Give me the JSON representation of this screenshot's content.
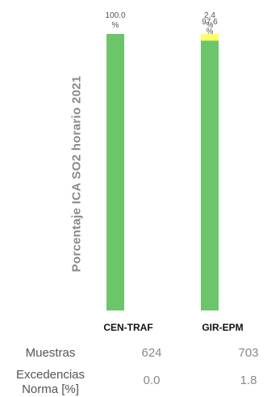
{
  "chart_data": {
    "type": "bar",
    "ylabel": "Porcentaje ICA SO2 horario 2021",
    "ylim": [
      0,
      100
    ],
    "categories": [
      "CEN-TRAF",
      "GIR-EPM"
    ],
    "series": [
      {
        "color": "#6cc56a",
        "values": [
          100.0,
          97.6
        ],
        "labels": [
          "100.0\n%",
          "97.6\n%"
        ]
      },
      {
        "color": "#ffff66",
        "values": [
          0.0,
          2.4
        ],
        "labels": [
          "",
          "2.4\n%"
        ]
      }
    ],
    "table": {
      "rows": [
        {
          "label": "Muestras",
          "values": [
            "624",
            "703"
          ]
        },
        {
          "label": "Excedencias\nNorma [%]",
          "values": [
            "0.0",
            "1.8"
          ]
        }
      ]
    }
  }
}
